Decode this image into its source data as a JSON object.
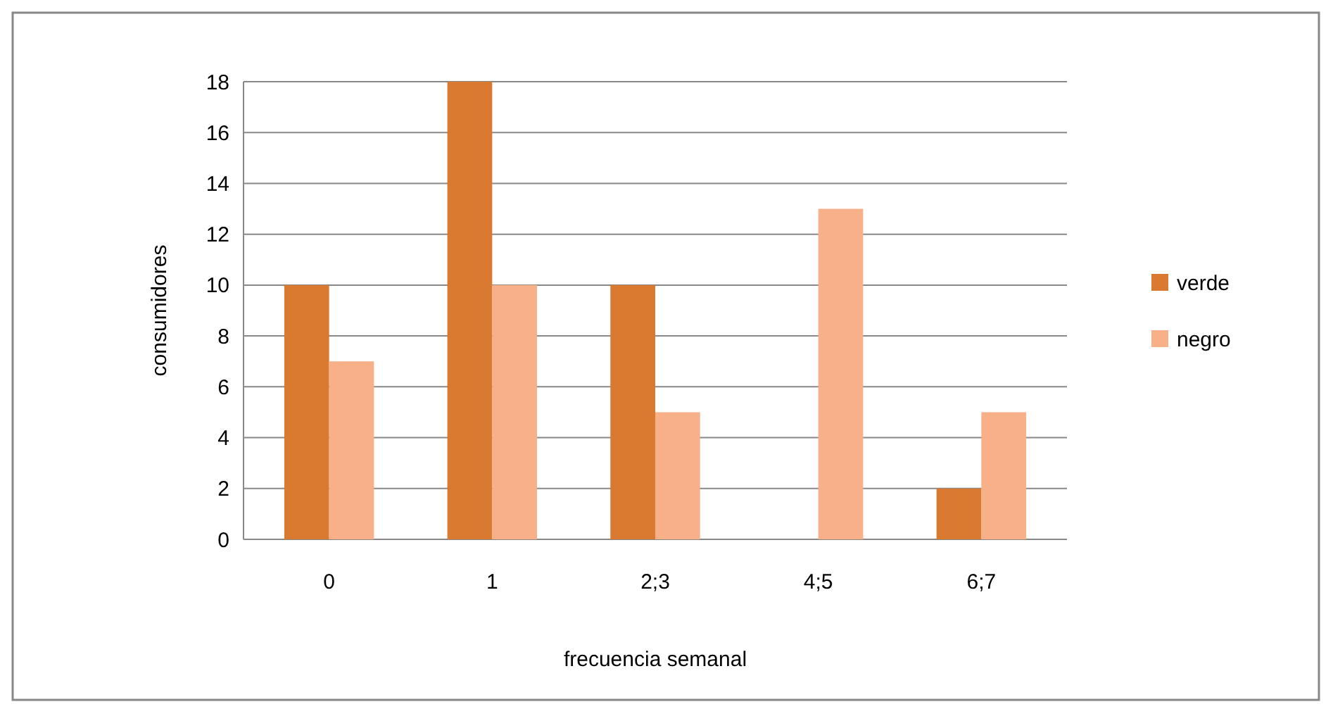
{
  "chart_data": {
    "type": "bar",
    "xlabel": "frecuencia semanal",
    "ylabel": "consumidores",
    "categories": [
      "0",
      "1",
      "2;3",
      "4;5",
      "6;7"
    ],
    "series": [
      {
        "name": "verde",
        "color": "#d97a30",
        "values": [
          10,
          18,
          10,
          0,
          2
        ]
      },
      {
        "name": "negro",
        "color": "#f8b088",
        "values": [
          7,
          10,
          5,
          13,
          5
        ]
      }
    ],
    "ylim": [
      0,
      18
    ],
    "yticks": [
      0,
      2,
      4,
      6,
      8,
      10,
      12,
      14,
      16,
      18
    ],
    "grid": "y",
    "legend": "right"
  }
}
